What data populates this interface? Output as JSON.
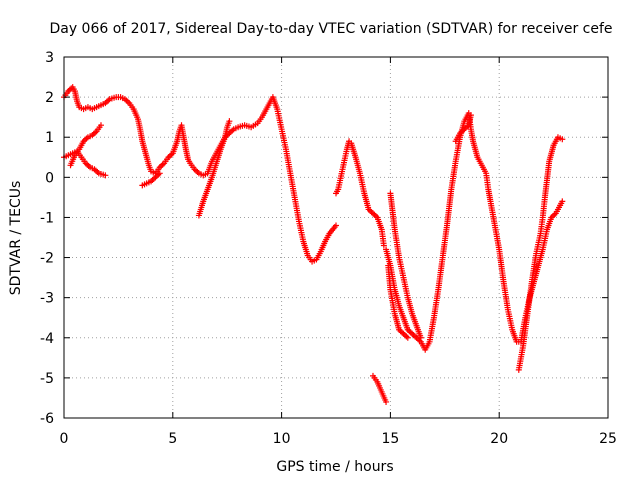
{
  "chart_data": {
    "type": "scatter",
    "title": "Day 066 of 2017, Sidereal Day-to-day VTEC variation (SDTVAR) for receiver cefe",
    "xlabel": "GPS time / hours",
    "ylabel": "SDTVAR / TECUs",
    "xlim": [
      0,
      25
    ],
    "ylim": [
      -6,
      3
    ],
    "xticks": [
      0,
      5,
      10,
      15,
      20,
      25
    ],
    "yticks": [
      -6,
      -5,
      -4,
      -3,
      -2,
      -1,
      0,
      1,
      2,
      3
    ],
    "grid": true,
    "marker": "+",
    "color": "#ff0000",
    "series": [
      {
        "segments": [
          [
            [
              0.0,
              2.0
            ],
            [
              0.2,
              2.15
            ],
            [
              0.4,
              2.25
            ],
            [
              0.5,
              2.15
            ],
            [
              0.6,
              1.9
            ],
            [
              0.7,
              1.75
            ],
            [
              0.9,
              1.7
            ],
            [
              1.1,
              1.75
            ],
            [
              1.3,
              1.7
            ],
            [
              1.5,
              1.75
            ],
            [
              1.7,
              1.8
            ],
            [
              1.9,
              1.85
            ],
            [
              2.1,
              1.95
            ],
            [
              2.4,
              2.0
            ],
            [
              2.6,
              2.0
            ],
            [
              2.8,
              1.95
            ],
            [
              3.0,
              1.85
            ],
            [
              3.2,
              1.7
            ],
            [
              3.4,
              1.45
            ],
            [
              3.5,
              1.2
            ],
            [
              3.6,
              0.9
            ],
            [
              3.7,
              0.7
            ],
            [
              3.8,
              0.5
            ],
            [
              3.9,
              0.3
            ],
            [
              4.0,
              0.15
            ],
            [
              4.2,
              0.1
            ],
            [
              4.4,
              0.25
            ],
            [
              4.6,
              0.35
            ],
            [
              4.8,
              0.5
            ],
            [
              5.0,
              0.6
            ],
            [
              5.2,
              0.9
            ],
            [
              5.3,
              1.15
            ],
            [
              5.4,
              1.3
            ],
            [
              5.5,
              1.0
            ],
            [
              5.6,
              0.7
            ],
            [
              5.7,
              0.45
            ],
            [
              5.8,
              0.35
            ],
            [
              6.0,
              0.2
            ],
            [
              6.2,
              0.1
            ],
            [
              6.4,
              0.05
            ],
            [
              6.6,
              0.1
            ],
            [
              6.8,
              0.4
            ],
            [
              7.0,
              0.6
            ],
            [
              7.2,
              0.8
            ],
            [
              7.4,
              1.0
            ],
            [
              7.6,
              1.1
            ],
            [
              7.8,
              1.2
            ],
            [
              8.0,
              1.25
            ],
            [
              8.3,
              1.3
            ],
            [
              8.6,
              1.25
            ],
            [
              8.9,
              1.35
            ],
            [
              9.1,
              1.5
            ],
            [
              9.3,
              1.7
            ],
            [
              9.5,
              1.9
            ],
            [
              9.6,
              2.0
            ],
            [
              9.8,
              1.7
            ],
            [
              10.0,
              1.2
            ],
            [
              10.2,
              0.7
            ],
            [
              10.4,
              0.1
            ],
            [
              10.6,
              -0.5
            ],
            [
              10.8,
              -1.1
            ],
            [
              11.0,
              -1.6
            ],
            [
              11.2,
              -1.95
            ],
            [
              11.4,
              -2.1
            ],
            [
              11.6,
              -2.05
            ],
            [
              11.8,
              -1.85
            ],
            [
              12.0,
              -1.6
            ],
            [
              12.2,
              -1.4
            ],
            [
              12.5,
              -1.2
            ]
          ],
          [
            [
              12.5,
              -0.4
            ],
            [
              12.6,
              -0.3
            ],
            [
              12.8,
              0.2
            ],
            [
              13.0,
              0.7
            ],
            [
              13.1,
              0.9
            ],
            [
              13.2,
              0.85
            ],
            [
              13.4,
              0.5
            ],
            [
              13.6,
              0.1
            ],
            [
              13.8,
              -0.4
            ],
            [
              14.0,
              -0.8
            ],
            [
              14.2,
              -0.9
            ],
            [
              14.4,
              -1.0
            ],
            [
              14.6,
              -1.3
            ],
            [
              14.7,
              -1.7
            ]
          ],
          [
            [
              14.8,
              -1.8
            ],
            [
              15.0,
              -2.2
            ],
            [
              15.2,
              -2.8
            ],
            [
              15.4,
              -3.2
            ],
            [
              15.6,
              -3.5
            ],
            [
              15.8,
              -3.8
            ],
            [
              16.0,
              -3.9
            ],
            [
              16.2,
              -4.0
            ],
            [
              16.4,
              -4.1
            ],
            [
              16.6,
              -4.3
            ],
            [
              16.8,
              -4.1
            ],
            [
              17.0,
              -3.5
            ],
            [
              17.2,
              -2.8
            ],
            [
              17.4,
              -2.0
            ],
            [
              17.6,
              -1.2
            ],
            [
              17.8,
              -0.3
            ],
            [
              18.0,
              0.4
            ],
            [
              18.2,
              1.0
            ],
            [
              18.4,
              1.4
            ],
            [
              18.6,
              1.6
            ],
            [
              18.7,
              1.2
            ],
            [
              18.8,
              0.9
            ],
            [
              19.0,
              0.5
            ],
            [
              19.2,
              0.3
            ],
            [
              19.4,
              0.1
            ],
            [
              19.5,
              -0.3
            ],
            [
              19.6,
              -0.6
            ],
            [
              19.8,
              -1.2
            ],
            [
              20.0,
              -1.8
            ],
            [
              20.2,
              -2.6
            ],
            [
              20.4,
              -3.3
            ],
            [
              20.6,
              -3.8
            ],
            [
              20.8,
              -4.1
            ],
            [
              21.0,
              -4.1
            ],
            [
              21.2,
              -3.5
            ],
            [
              21.4,
              -3.0
            ],
            [
              21.6,
              -2.6
            ],
            [
              21.8,
              -2.2
            ],
            [
              22.0,
              -1.8
            ],
            [
              22.2,
              -1.3
            ],
            [
              22.4,
              -1.0
            ],
            [
              22.6,
              -0.9
            ],
            [
              22.8,
              -0.7
            ],
            [
              22.9,
              -0.6
            ]
          ],
          [
            [
              0.0,
              0.5
            ],
            [
              0.2,
              0.55
            ],
            [
              0.4,
              0.6
            ],
            [
              0.6,
              0.65
            ],
            [
              0.8,
              0.5
            ],
            [
              1.0,
              0.35
            ],
            [
              1.2,
              0.25
            ],
            [
              1.4,
              0.2
            ],
            [
              1.6,
              0.1
            ],
            [
              1.9,
              0.05
            ]
          ],
          [
            [
              0.3,
              0.3
            ],
            [
              0.5,
              0.55
            ],
            [
              0.7,
              0.7
            ],
            [
              0.9,
              0.9
            ],
            [
              1.1,
              1.0
            ],
            [
              1.3,
              1.05
            ],
            [
              1.5,
              1.15
            ],
            [
              1.7,
              1.3
            ]
          ],
          [
            [
              3.6,
              -0.2
            ],
            [
              3.8,
              -0.15
            ],
            [
              4.0,
              -0.1
            ],
            [
              4.2,
              0.0
            ],
            [
              4.4,
              0.1
            ]
          ],
          [
            [
              6.2,
              -0.95
            ],
            [
              6.4,
              -0.6
            ],
            [
              6.6,
              -0.3
            ],
            [
              6.8,
              0.0
            ],
            [
              7.0,
              0.35
            ],
            [
              7.2,
              0.7
            ],
            [
              7.4,
              1.0
            ],
            [
              7.5,
              1.25
            ],
            [
              7.6,
              1.4
            ]
          ],
          [
            [
              14.2,
              -4.95
            ],
            [
              14.4,
              -5.1
            ],
            [
              14.6,
              -5.35
            ],
            [
              14.8,
              -5.6
            ]
          ],
          [
            [
              15.0,
              -0.4
            ],
            [
              15.2,
              -1.3
            ],
            [
              15.4,
              -2.0
            ],
            [
              15.6,
              -2.5
            ],
            [
              15.8,
              -3.0
            ],
            [
              16.0,
              -3.4
            ],
            [
              16.2,
              -3.7
            ],
            [
              16.4,
              -4.0
            ]
          ],
          [
            [
              14.9,
              -2.2
            ],
            [
              15.0,
              -2.8
            ],
            [
              15.2,
              -3.4
            ],
            [
              15.4,
              -3.8
            ],
            [
              15.6,
              -3.9
            ],
            [
              15.8,
              -4.0
            ]
          ],
          [
            [
              18.0,
              0.9
            ],
            [
              18.2,
              1.1
            ],
            [
              18.4,
              1.2
            ],
            [
              18.6,
              1.3
            ],
            [
              18.7,
              1.55
            ]
          ],
          [
            [
              20.9,
              -4.8
            ],
            [
              21.1,
              -4.2
            ],
            [
              21.3,
              -3.4
            ],
            [
              21.5,
              -2.6
            ],
            [
              21.7,
              -1.9
            ],
            [
              21.9,
              -1.4
            ],
            [
              22.0,
              -1.0
            ],
            [
              22.1,
              -0.5
            ],
            [
              22.3,
              0.4
            ],
            [
              22.5,
              0.8
            ],
            [
              22.7,
              1.0
            ],
            [
              22.9,
              0.95
            ]
          ]
        ]
      }
    ]
  }
}
